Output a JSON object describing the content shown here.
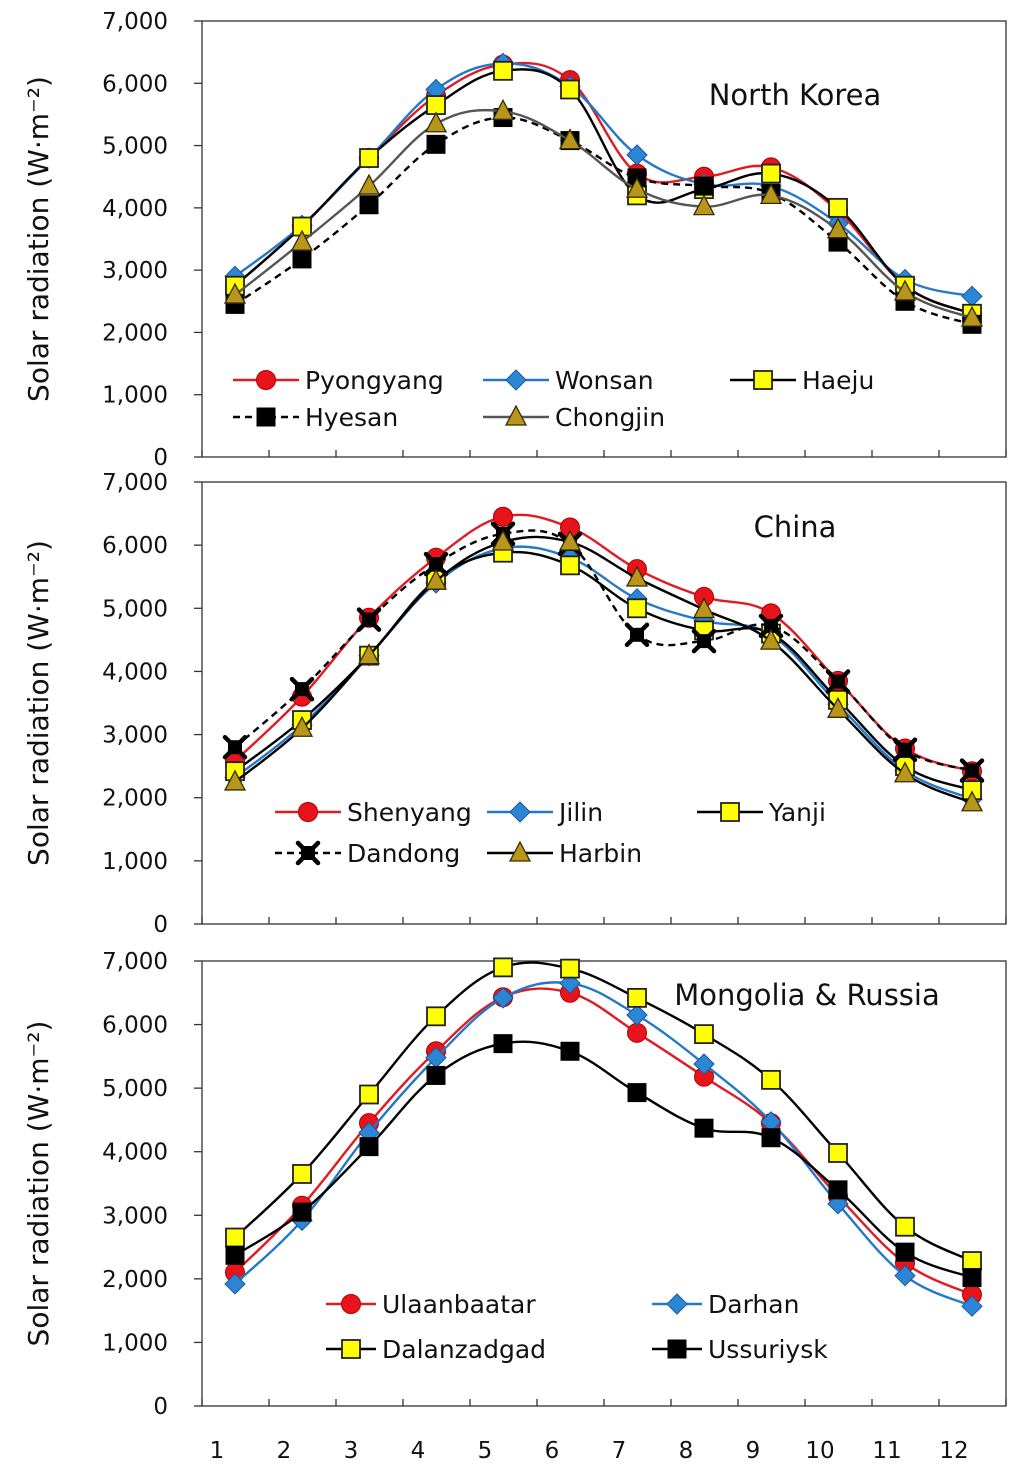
{
  "chart_data": [
    {
      "type": "line",
      "title": "North Korea",
      "ylabel": "Solar radiation (W·m⁻²)",
      "xlabel": "",
      "ylim": [
        0,
        7000
      ],
      "yticks": [
        "0",
        "1,000",
        "2,000",
        "3,000",
        "4,000",
        "5,000",
        "6,000",
        "7,000"
      ],
      "x": [
        1,
        2,
        3,
        4,
        5,
        6,
        7,
        8,
        9,
        10,
        11,
        12
      ],
      "legend": "lower-left inside",
      "series": [
        {
          "name": "Pyongyang",
          "color": "#e01b24",
          "marker": "circle",
          "dash": false,
          "values": [
            2750,
            3700,
            4800,
            5800,
            6300,
            6050,
            4550,
            4500,
            4650,
            3950,
            2750,
            2300
          ]
        },
        {
          "name": "Wonsan",
          "color": "#2378c8",
          "marker": "diamond",
          "dash": false,
          "values": [
            2900,
            3720,
            4800,
            5900,
            6320,
            5950,
            4850,
            4380,
            4350,
            3750,
            2850,
            2580
          ]
        },
        {
          "name": "Haeju",
          "color": "#000000",
          "marker": "square-yellow",
          "dash": false,
          "values": [
            2750,
            3700,
            4800,
            5650,
            6200,
            5900,
            4200,
            4300,
            4550,
            4000,
            2750,
            2300
          ]
        },
        {
          "name": "Hyesan",
          "color": "#000000",
          "marker": "square-black",
          "dash": true,
          "values": [
            2450,
            3180,
            4050,
            5020,
            5450,
            5080,
            4480,
            4350,
            4230,
            3450,
            2500,
            2130
          ]
        },
        {
          "name": "Chongjin",
          "color": "#555555",
          "marker": "triangle",
          "dash": false,
          "values": [
            2600,
            3450,
            4350,
            5350,
            5550,
            5080,
            4300,
            4020,
            4200,
            3650,
            2650,
            2230
          ]
        }
      ]
    },
    {
      "type": "line",
      "title": "China",
      "ylabel": "Solar radiation (W·m⁻²)",
      "xlabel": "",
      "ylim": [
        0,
        7000
      ],
      "yticks": [
        "0",
        "1,000",
        "2,000",
        "3,000",
        "4,000",
        "5,000",
        "6,000",
        "7,000"
      ],
      "x": [
        1,
        2,
        3,
        4,
        5,
        6,
        7,
        8,
        9,
        10,
        11,
        12
      ],
      "legend": "lower-left inside",
      "series": [
        {
          "name": "Shenyang",
          "color": "#e01b24",
          "marker": "circle",
          "dash": false,
          "values": [
            2580,
            3600,
            4850,
            5800,
            6450,
            6280,
            5620,
            5180,
            4920,
            3850,
            2780,
            2420
          ]
        },
        {
          "name": "Jilin",
          "color": "#2378c8",
          "marker": "diamond",
          "dash": false,
          "values": [
            2320,
            3150,
            4250,
            5400,
            5950,
            5800,
            5150,
            4800,
            4580,
            3480,
            2430,
            1980
          ]
        },
        {
          "name": "Yanji",
          "color": "#000000",
          "marker": "square-yellow",
          "dash": false,
          "values": [
            2420,
            3230,
            4250,
            5450,
            5880,
            5680,
            5000,
            4650,
            4600,
            3550,
            2500,
            2120
          ]
        },
        {
          "name": "Dandong",
          "color": "#000000",
          "marker": "x-black",
          "dash": true,
          "values": [
            2800,
            3720,
            4820,
            5700,
            6180,
            6020,
            4580,
            4480,
            4720,
            3840,
            2760,
            2430
          ]
        },
        {
          "name": "Harbin",
          "color": "#000000",
          "marker": "triangle",
          "dash": false,
          "values": [
            2250,
            3100,
            4250,
            5430,
            6050,
            6050,
            5480,
            4980,
            4480,
            3400,
            2380,
            1920
          ]
        }
      ]
    },
    {
      "type": "line",
      "title": "Mongolia & Russia",
      "ylabel": "Solar radiation (W·m⁻²)",
      "xlabel": "",
      "ylim": [
        0,
        7000
      ],
      "yticks": [
        "0",
        "1,000",
        "2,000",
        "3,000",
        "4,000",
        "5,000",
        "6,000",
        "7,000"
      ],
      "xticks": [
        "1",
        "2",
        "3",
        "4",
        "5",
        "6",
        "7",
        "8",
        "9",
        "10",
        "11",
        "12"
      ],
      "x": [
        1,
        2,
        3,
        4,
        5,
        6,
        7,
        8,
        9,
        10,
        11,
        12
      ],
      "legend": "lower-center inside",
      "series": [
        {
          "name": "Ulaanbaatar",
          "color": "#e01b24",
          "marker": "circle",
          "dash": false,
          "values": [
            2100,
            3150,
            4450,
            5580,
            6430,
            6500,
            5870,
            5180,
            4450,
            3300,
            2250,
            1750
          ]
        },
        {
          "name": "Darhan",
          "color": "#2378c8",
          "marker": "diamond",
          "dash": false,
          "values": [
            1920,
            2920,
            4300,
            5480,
            6420,
            6650,
            6150,
            5380,
            4470,
            3180,
            2050,
            1570
          ]
        },
        {
          "name": "Dalanzadgad",
          "color": "#000000",
          "marker": "square-yellow",
          "dash": false,
          "values": [
            2650,
            3650,
            4900,
            6130,
            6900,
            6880,
            6420,
            5850,
            5130,
            3980,
            2820,
            2280
          ]
        },
        {
          "name": "Ussuriysk",
          "color": "#000000",
          "marker": "square-black",
          "dash": false,
          "values": [
            2370,
            3050,
            4080,
            5200,
            5700,
            5580,
            4930,
            4370,
            4220,
            3400,
            2420,
            2020
          ]
        }
      ]
    }
  ]
}
